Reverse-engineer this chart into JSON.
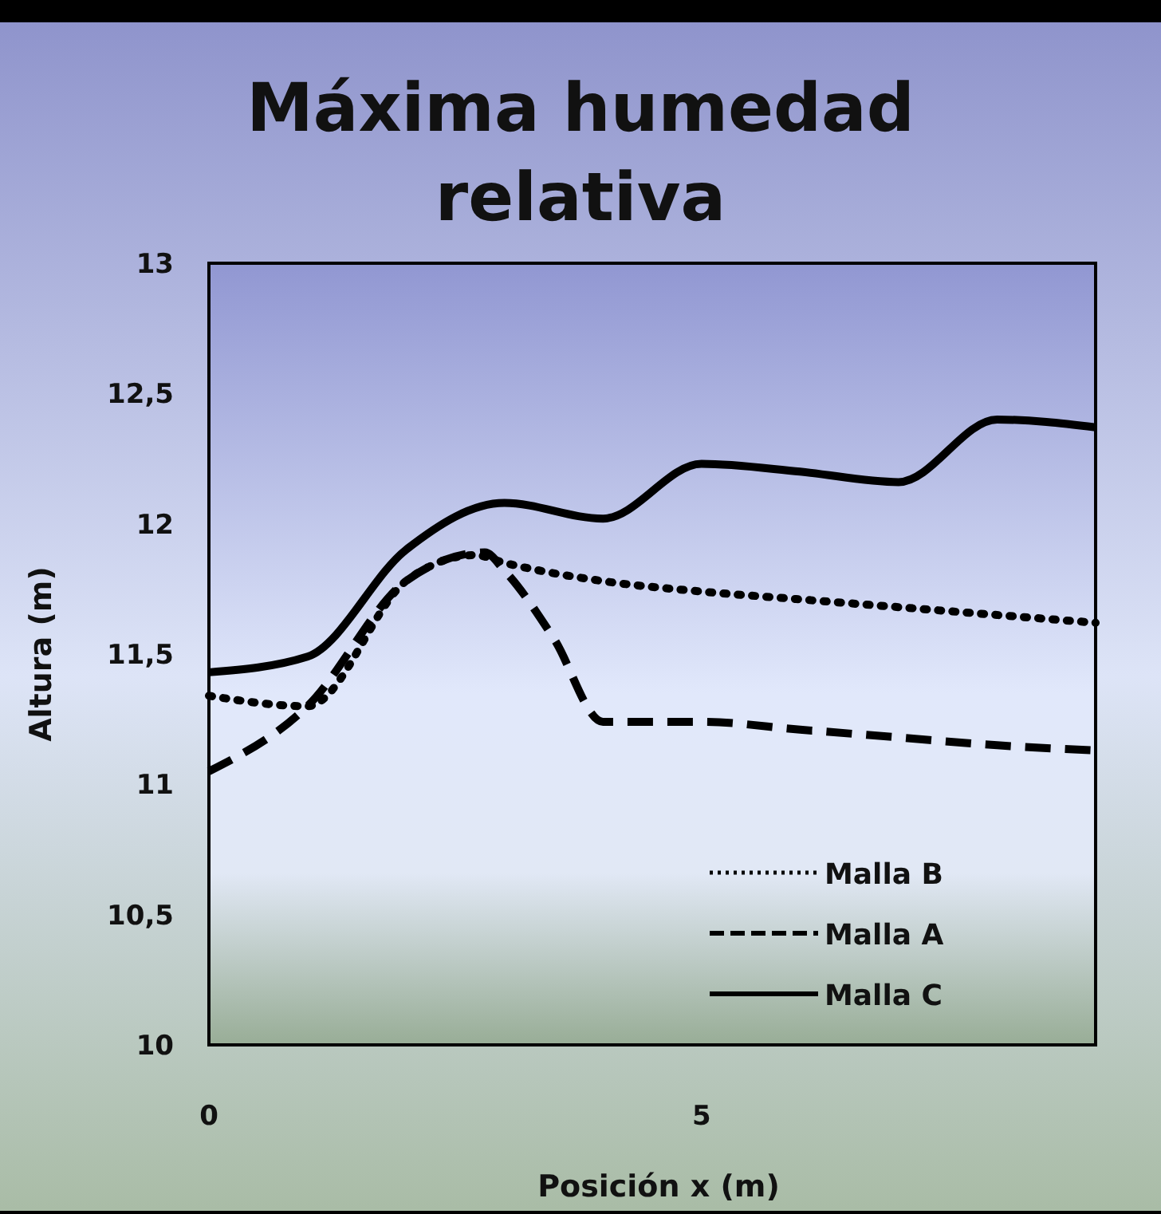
{
  "chart_data": {
    "type": "line",
    "title": "Máxima humedad relativa",
    "xlabel": "Posición  x (m)",
    "ylabel": "Altura  (m)",
    "xlim": [
      0,
      9
    ],
    "xticks": [
      0,
      5
    ],
    "ylim": [
      10,
      13
    ],
    "yticks": [
      10,
      {
        "value": 10.5,
        "label": "10,5"
      },
      11,
      {
        "value": 11.5,
        "label": "11,5"
      },
      12,
      {
        "value": 12.5,
        "label": "12,5"
      },
      13
    ],
    "grid": false,
    "legend": "bottom right",
    "marker": "none",
    "series": [
      {
        "name": "Malla B",
        "color": "#000000",
        "line_style": "dotted",
        "x": [
          0,
          1,
          2,
          2.7,
          3,
          4,
          5,
          6,
          7,
          8,
          9
        ],
        "values": [
          11.34,
          11.3,
          11.78,
          11.88,
          11.85,
          11.78,
          11.74,
          11.71,
          11.68,
          11.65,
          11.62
        ]
      },
      {
        "name": "Malla A",
        "color": "#000000",
        "line_style": "dashed",
        "x": [
          0,
          1,
          2,
          2.8,
          3,
          3.5,
          4,
          5,
          6,
          7,
          8,
          9
        ],
        "values": [
          11.05,
          11.3,
          11.78,
          11.89,
          11.82,
          11.56,
          11.24,
          11.24,
          11.21,
          11.18,
          11.15,
          11.13
        ]
      },
      {
        "name": "Malla C",
        "color": "#000000",
        "line_style": "solid",
        "x": [
          0,
          1,
          2,
          3,
          4,
          5,
          6,
          7,
          8,
          9
        ],
        "values": [
          11.43,
          11.49,
          11.9,
          12.08,
          12.02,
          12.23,
          12.2,
          12.16,
          12.4,
          12.37
        ]
      }
    ]
  }
}
